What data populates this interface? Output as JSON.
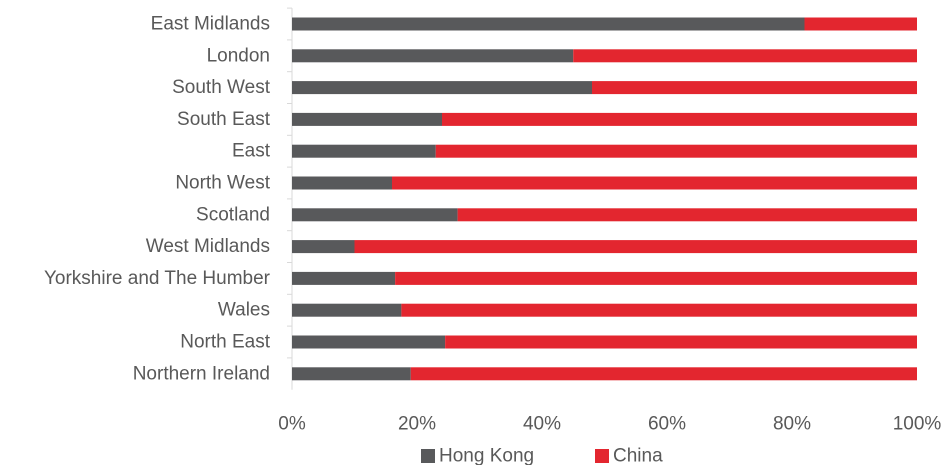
{
  "chart_data": {
    "type": "bar",
    "orientation": "horizontal",
    "stacked": "percent",
    "categories": [
      "East Midlands",
      "London",
      "South West",
      "South East",
      "East",
      "North West",
      "Scotland",
      "West Midlands",
      "Yorkshire and The Humber",
      "Wales",
      "North East",
      "Northern Ireland"
    ],
    "series": [
      {
        "name": "Hong Kong",
        "color": "#58595b",
        "values": [
          82,
          45,
          48,
          24,
          23,
          16,
          26.5,
          10,
          16.5,
          17.5,
          24.5,
          19
        ]
      },
      {
        "name": "China",
        "color": "#e3262f",
        "values": [
          18,
          55,
          52,
          76,
          77,
          84,
          73.5,
          90,
          83.5,
          82.5,
          75.5,
          81
        ]
      }
    ],
    "x_ticks": [
      "0%",
      "20%",
      "40%",
      "60%",
      "80%",
      "100%"
    ],
    "xlim": [
      0,
      100
    ],
    "grid": false,
    "legend": "bottom"
  }
}
